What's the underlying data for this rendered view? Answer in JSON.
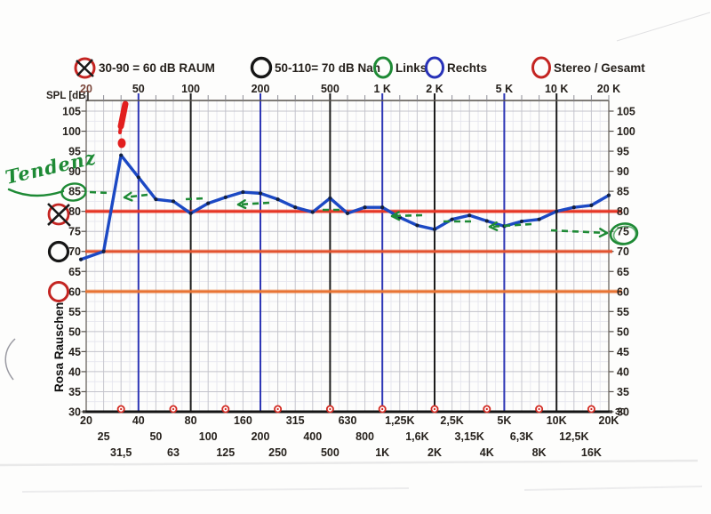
{
  "legend": {
    "items": [
      {
        "label": "30-90 = 60 dB  RAUM",
        "symbol": "circle-crossed",
        "color": "#c42522"
      },
      {
        "label": "50-110= 70 dB Nah",
        "symbol": "circle",
        "color": "#161616"
      },
      {
        "label": "Links",
        "symbol": "circle",
        "color": "#1e8a35"
      },
      {
        "label": "Rechts",
        "symbol": "circle",
        "color": "#2832b8"
      },
      {
        "label": "Stereo / Gesamt",
        "symbol": "circle",
        "color": "#c42522"
      }
    ]
  },
  "axes": {
    "y_label": "SPL [dB]",
    "y_ticks": [
      105,
      100,
      95,
      90,
      85,
      80,
      75,
      70,
      65,
      60,
      55,
      50,
      45,
      40,
      35,
      30
    ],
    "top_labels": [
      "20",
      "50",
      "100",
      "200",
      "500",
      "1 K",
      "2 K",
      "5 K",
      "10 K",
      "20 K"
    ],
    "bottom_right_label": "30"
  },
  "chart_data": {
    "type": "line",
    "x_unit": "Hz (third-octave bands, log scale)",
    "y_unit": "dB SPL",
    "ylim": [
      30,
      105
    ],
    "categories": [
      "20",
      "25",
      "31,5",
      "40",
      "50",
      "63",
      "80",
      "100",
      "125",
      "160",
      "200",
      "250",
      "315",
      "400",
      "500",
      "630",
      "800",
      "1K",
      "1,25K",
      "1,6K",
      "2K",
      "2,5K",
      "3,15K",
      "4K",
      "5K",
      "6,3K",
      "8K",
      "10K",
      "12,5K",
      "16K",
      "20K"
    ],
    "series": [
      {
        "name": "Stereo / Gesamt (gemessen)",
        "color": "#1c49c4",
        "values": [
          68,
          70,
          94,
          88.5,
          83,
          82.5,
          79.5,
          82,
          83.5,
          84.8,
          84.5,
          83,
          81,
          79.8,
          83.3,
          79.5,
          81,
          81,
          78.5,
          76.5,
          75.5,
          78,
          79,
          77.6,
          76.3,
          77.5,
          78,
          80,
          81,
          81.5,
          84
        ]
      }
    ],
    "reference_lines": [
      {
        "db": 80,
        "color": "#e63726"
      },
      {
        "db": 70,
        "color": "#e2532f"
      },
      {
        "db": 60,
        "color": "#e87434"
      }
    ],
    "octave_markers": [
      "31,5",
      "63",
      "125",
      "250",
      "500",
      "1K",
      "2K",
      "4K",
      "8K",
      "16K"
    ],
    "major_gridlines": [
      {
        "freq": "50",
        "color": "#2d36b5"
      },
      {
        "freq": "100",
        "color": "#1c1c1c"
      },
      {
        "freq": "200",
        "color": "#2d36b5"
      },
      {
        "freq": "500",
        "color": "#1c1c1c"
      },
      {
        "freq": "1 K",
        "color": "#2d36b5"
      },
      {
        "freq": "2 K",
        "color": "#1c1c1c"
      },
      {
        "freq": "5 K",
        "color": "#2d36b5"
      },
      {
        "freq": "10 K",
        "color": "#1c1c1c"
      }
    ],
    "legend_position": "top",
    "grid": true
  },
  "annotations": {
    "tendenz_text": "Tendenz",
    "rosa_rauschen_text": "Rosa Rauschen",
    "left_circled_value": "85",
    "right_circled_value": "75",
    "crossed_axis_value": "80",
    "black_circle_axis_value": "70",
    "red_circle_axis_value": "60",
    "exclamation": "!",
    "exclamation_at": "31,5 Hz Spitze 94 dB"
  },
  "colors": {
    "curve": "#1c49c4",
    "green_annotation": "#1e8a35",
    "grid_minor": "#c6c6ce",
    "grid_faint": "#e6e6ee",
    "label_ink": "#26211c",
    "red_marker": "#c42522"
  }
}
